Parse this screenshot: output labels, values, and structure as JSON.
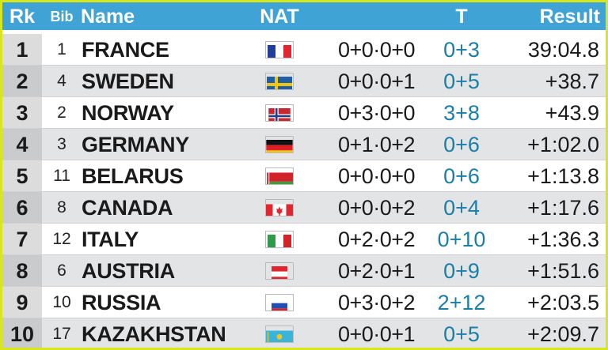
{
  "header": {
    "rank": "Rk",
    "bib": "Bib",
    "name": "Name",
    "nat": "NAT",
    "t": "T",
    "result": "Result"
  },
  "colors": {
    "header_bg": "#3fa3d6",
    "frame": "#d7e61d",
    "t_value": "#1a7fa8"
  },
  "rows": [
    {
      "rank": "1",
      "bib": "1",
      "name": "FRANCE",
      "flag": "france-flag-icon",
      "shooting": "0+0·0+0",
      "t": "0+3",
      "result": "39:04.8"
    },
    {
      "rank": "2",
      "bib": "4",
      "name": "SWEDEN",
      "flag": "sweden-flag-icon",
      "shooting": "0+0·0+1",
      "t": "0+5",
      "result": "+38.7"
    },
    {
      "rank": "3",
      "bib": "2",
      "name": "NORWAY",
      "flag": "norway-flag-icon",
      "shooting": "0+3·0+0",
      "t": "3+8",
      "result": "+43.9"
    },
    {
      "rank": "4",
      "bib": "3",
      "name": "GERMANY",
      "flag": "germany-flag-icon",
      "shooting": "0+1·0+2",
      "t": "0+6",
      "result": "+1:02.0"
    },
    {
      "rank": "5",
      "bib": "11",
      "name": "BELARUS",
      "flag": "belarus-flag-icon",
      "shooting": "0+0·0+0",
      "t": "0+6",
      "result": "+1:13.8"
    },
    {
      "rank": "6",
      "bib": "8",
      "name": "CANADA",
      "flag": "canada-flag-icon",
      "shooting": "0+0·0+2",
      "t": "0+4",
      "result": "+1:17.6"
    },
    {
      "rank": "7",
      "bib": "12",
      "name": "ITALY",
      "flag": "italy-flag-icon",
      "shooting": "0+2·0+2",
      "t": "0+10",
      "result": "+1:36.3"
    },
    {
      "rank": "8",
      "bib": "6",
      "name": "AUSTRIA",
      "flag": "austria-flag-icon",
      "shooting": "0+2·0+1",
      "t": "0+9",
      "result": "+1:51.6"
    },
    {
      "rank": "9",
      "bib": "10",
      "name": "RUSSIA",
      "flag": "russia-flag-icon",
      "shooting": "0+3·0+2",
      "t": "2+12",
      "result": "+2:03.5"
    },
    {
      "rank": "10",
      "bib": "17",
      "name": "KAZAKHSTAN",
      "flag": "kazakhstan-flag-icon",
      "shooting": "0+0·0+1",
      "t": "0+5",
      "result": "+2:09.7"
    }
  ]
}
